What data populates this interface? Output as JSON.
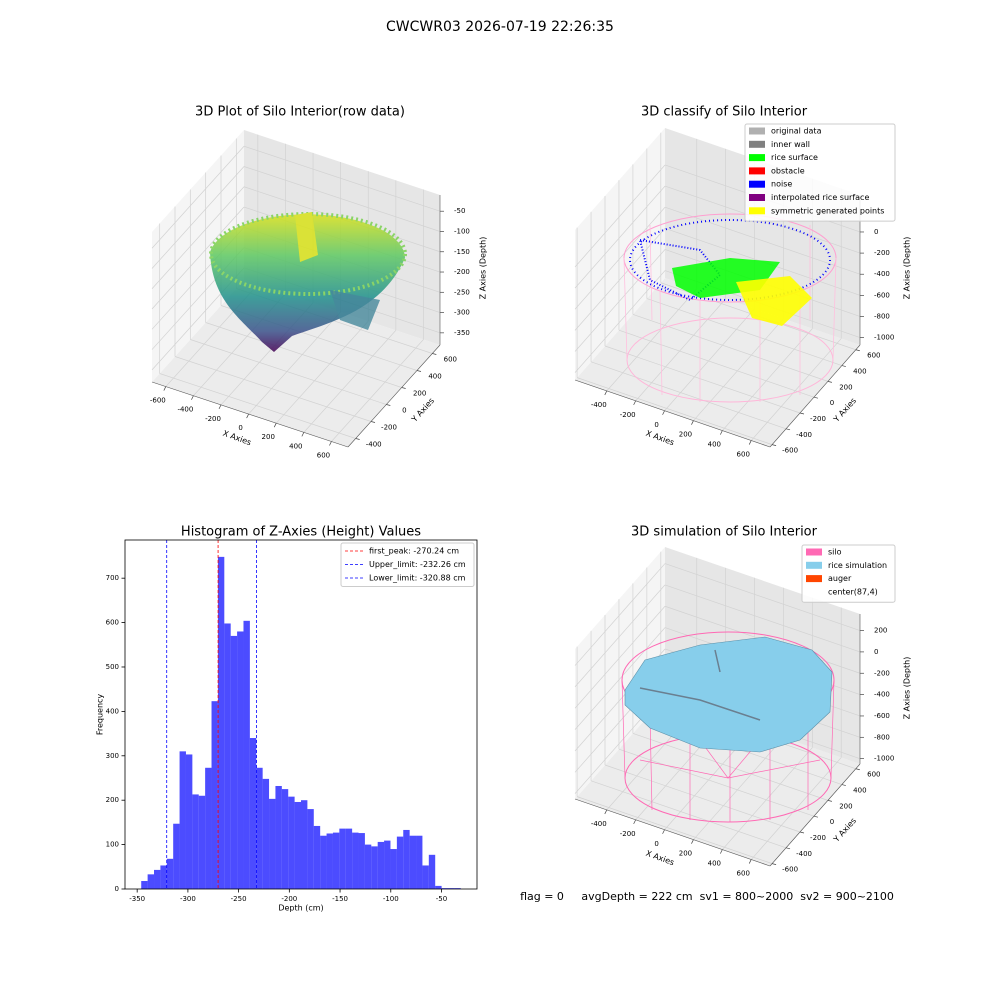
{
  "title": "CWCWR03 2026-07-19 22:26:35",
  "footer": "flag = 0     avgDepth = 222 cm  sv1 = 800~2000  sv2 = 900~2100",
  "chart_data": [
    {
      "type": "scatter3d",
      "title": "3D Plot of Silo Interior(row data)",
      "xlabel": "X Axies",
      "ylabel": "Y Axies",
      "zlabel": "Z Axies (Depth)",
      "xlim": [
        -700,
        720
      ],
      "ylim": [
        -500,
        700
      ],
      "zlim": [
        -380,
        -10
      ],
      "xticks": [
        -600,
        -400,
        -200,
        0,
        200,
        400,
        600
      ],
      "yticks": [
        -400,
        -200,
        0,
        200,
        400,
        600
      ],
      "zticks": [
        -350,
        -300,
        -250,
        -200,
        -150,
        -100,
        -50
      ],
      "grid": true
    },
    {
      "type": "scatter3d",
      "title": "3D classify of Silo Interior",
      "xlabel": "X Axies",
      "ylabel": "Y Axies",
      "zlabel": "Z Axies (Depth)",
      "xlim": [
        -620,
        730
      ],
      "ylim": [
        -630,
        660
      ],
      "zlim": [
        -1070,
        350
      ],
      "xticks": [
        -400,
        -200,
        0,
        200,
        400,
        600
      ],
      "yticks": [
        -600,
        -400,
        -200,
        0,
        200,
        400,
        600
      ],
      "zticks": [
        -1000,
        -800,
        -600,
        -400,
        -200,
        0
      ],
      "grid": true,
      "legend": "upper right",
      "series": [
        {
          "name": "original data",
          "color": "#b0b0b0"
        },
        {
          "name": "inner wall",
          "color": "#808080"
        },
        {
          "name": "rice surface",
          "color": "#00ff00"
        },
        {
          "name": "obstacle",
          "color": "#ff0000"
        },
        {
          "name": "noise",
          "color": "#0000ff"
        },
        {
          "name": "interpolated rice surface",
          "color": "#800080"
        },
        {
          "name": "symmetric generated points",
          "color": "#ffff00"
        }
      ]
    },
    {
      "type": "histogram",
      "title": "Histogram of Z-Axies (Height) Values",
      "xlabel": "Depth (cm)",
      "ylabel": "Frequency",
      "color": "#0000ff",
      "alpha": 0.7,
      "bins": [
        -346,
        -339.7,
        -333.4,
        -327.1,
        -320.8,
        -314.5,
        -308.2,
        -301.9,
        -295.6,
        -289.3,
        -283,
        -276.7,
        -270.4,
        -264.1,
        -257.8,
        -251.5,
        -245.2,
        -238.9,
        -232.6,
        -226.3,
        -220,
        -213.7,
        -207.4,
        -201.1,
        -194.8,
        -188.5,
        -182.2,
        -175.9,
        -169.6,
        -163.3,
        -157,
        -150.7,
        -144.4,
        -138.1,
        -131.8,
        -125.5,
        -119.2,
        -112.9,
        -106.6,
        -100.3,
        -94,
        -87.7,
        -81.4,
        -75.1,
        -68.8,
        -62.5,
        -56.2,
        -49.9,
        -43.6,
        -37.3,
        -31
      ],
      "values": [
        18,
        33,
        43,
        53,
        68,
        147,
        310,
        303,
        213,
        210,
        273,
        423,
        748,
        598,
        570,
        580,
        604,
        340,
        273,
        248,
        203,
        232,
        225,
        208,
        196,
        200,
        180,
        142,
        120,
        125,
        127,
        136,
        136,
        127,
        126,
        100,
        96,
        106,
        109,
        90,
        118,
        133,
        120,
        120,
        53,
        77,
        7,
        2,
        2,
        2
      ],
      "xlim": [
        -362,
        -15
      ],
      "ylim": [
        0,
        786
      ],
      "xticks": [
        -350,
        -300,
        -250,
        -200,
        -150,
        -100,
        -50
      ],
      "yticks": [
        0,
        100,
        200,
        300,
        400,
        500,
        600,
        700
      ],
      "legend": "upper right",
      "vlines": [
        {
          "name": "first_peak: -270.24 cm",
          "value": -270.24,
          "color": "#ff0000"
        },
        {
          "name": "Upper_limit: -232.26 cm",
          "value": -232.26,
          "color": "#0000ff"
        },
        {
          "name": "Lower_limit: -320.88 cm",
          "value": -320.88,
          "color": "#0000ff"
        }
      ]
    },
    {
      "type": "surface3d",
      "title": "3D simulation of Silo Interior",
      "xlabel": "X Axies",
      "ylabel": "Y Axies",
      "zlabel": "Z Axies (Depth)",
      "xlim": [
        -620,
        730
      ],
      "ylim": [
        -630,
        660
      ],
      "zlim": [
        -1050,
        355
      ],
      "xticks": [
        -400,
        -200,
        0,
        200,
        400,
        600
      ],
      "yticks": [
        -600,
        -400,
        -200,
        0,
        200,
        400,
        600
      ],
      "zticks": [
        -1000,
        -800,
        -600,
        -400,
        -200,
        0,
        200
      ],
      "grid": true,
      "legend": "upper right",
      "series": [
        {
          "name": "silo",
          "color": "#ff69b4"
        },
        {
          "name": "rice simulation",
          "color": "#87ceeb"
        },
        {
          "name": "auger",
          "color": "#ff4500"
        },
        {
          "name": "center(87,4)",
          "color": "#ffffff"
        }
      ]
    }
  ]
}
